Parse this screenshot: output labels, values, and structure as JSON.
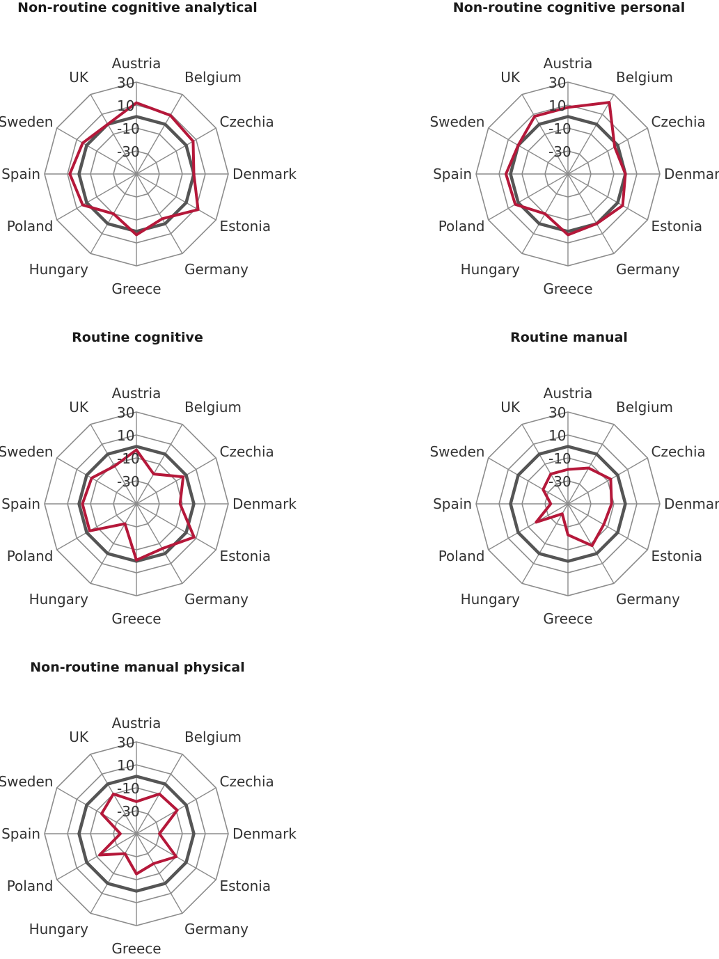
{
  "chart_data": [
    {
      "type": "radar",
      "title": "Non-routine cognitive analytical",
      "categories": [
        "Austria",
        "Belgium",
        "Czechia",
        "Denmark",
        "Estonia",
        "Germany",
        "Greece",
        "Hungary",
        "Poland",
        "Spain",
        "Sweden",
        "UK"
      ],
      "ticks": [
        30,
        10,
        -10,
        -30
      ],
      "rlim": [
        -50,
        30
      ],
      "grid": true,
      "series": [
        {
          "color": "#555555",
          "values": [
            0,
            0,
            0,
            0,
            0,
            0,
            0,
            0,
            0,
            0,
            0,
            0
          ]
        },
        {
          "color": "#b5183a",
          "values": [
            12,
            9,
            7,
            0,
            12,
            -5,
            3,
            -10,
            4,
            8,
            4,
            0
          ]
        }
      ]
    },
    {
      "type": "radar",
      "title": "Non-routine cognitive personal",
      "categories": [
        "Austria",
        "Belgium",
        "Czechia",
        "Denmark",
        "Estonia",
        "Germany",
        "Greece",
        "Hungary",
        "Poland",
        "Spain",
        "Sweden",
        "UK"
      ],
      "ticks": [
        30,
        10,
        -10,
        -30
      ],
      "rlim": [
        -50,
        30
      ],
      "grid": true,
      "series": [
        {
          "color": "#555555",
          "values": [
            0,
            0,
            0,
            0,
            0,
            0,
            0,
            0,
            0,
            0,
            0,
            0
          ]
        },
        {
          "color": "#b5183a",
          "values": [
            8,
            22,
            -3,
            0,
            5,
            0,
            3,
            -10,
            3,
            4,
            0,
            8
          ]
        }
      ]
    },
    {
      "type": "radar",
      "title": "Routine cognitive",
      "categories": [
        "Austria",
        "Belgium",
        "Czechia",
        "Denmark",
        "Estonia",
        "Germany",
        "Greece",
        "Hungary",
        "Poland",
        "Spain",
        "Sweden",
        "UK"
      ],
      "ticks": [
        30,
        10,
        -10,
        -30
      ],
      "rlim": [
        -50,
        30
      ],
      "grid": true,
      "series": [
        {
          "color": "#555555",
          "values": [
            0,
            0,
            0,
            0,
            0,
            0,
            0,
            0,
            0,
            0,
            0,
            0
          ]
        },
        {
          "color": "#b5183a",
          "values": [
            -3,
            -20,
            -3,
            -12,
            8,
            -5,
            -1,
            -30,
            -3,
            -3,
            -5,
            -12
          ]
        }
      ]
    },
    {
      "type": "radar",
      "title": "Routine manual",
      "categories": [
        "Austria",
        "Belgium",
        "Czechia",
        "Denmark",
        "Estonia",
        "Germany",
        "Greece",
        "Hungary",
        "Poland",
        "Spain",
        "Sweden",
        "UK"
      ],
      "ticks": [
        30,
        10,
        -10,
        -30
      ],
      "rlim": [
        -50,
        30
      ],
      "grid": true,
      "series": [
        {
          "color": "#555555",
          "values": [
            0,
            0,
            0,
            0,
            0,
            0,
            0,
            0,
            0,
            0,
            0,
            0
          ]
        },
        {
          "color": "#b5183a",
          "values": [
            -20,
            -14,
            -7,
            -12,
            -14,
            -8,
            -23,
            -40,
            -18,
            -35,
            -25,
            -20
          ]
        }
      ]
    },
    {
      "type": "radar",
      "title": "Non-routine manual physical",
      "categories": [
        "Austria",
        "Belgium",
        "Czechia",
        "Denmark",
        "Estonia",
        "Germany",
        "Greece",
        "Hungary",
        "Poland",
        "Spain",
        "Sweden",
        "UK"
      ],
      "ticks": [
        30,
        10,
        -10,
        -30
      ],
      "rlim": [
        -50,
        30
      ],
      "grid": true,
      "series": [
        {
          "color": "#555555",
          "values": [
            0,
            0,
            0,
            0,
            0,
            0,
            0,
            0,
            0,
            0,
            0,
            0
          ]
        },
        {
          "color": "#b5183a",
          "values": [
            -22,
            -10,
            -9,
            -30,
            -10,
            -20,
            -15,
            -30,
            -13,
            -36,
            -15,
            -10
          ]
        }
      ]
    }
  ],
  "style": {
    "grid_color": "#8c8c8c",
    "label_color": "#333333",
    "title_color": "#1a1a1a"
  }
}
